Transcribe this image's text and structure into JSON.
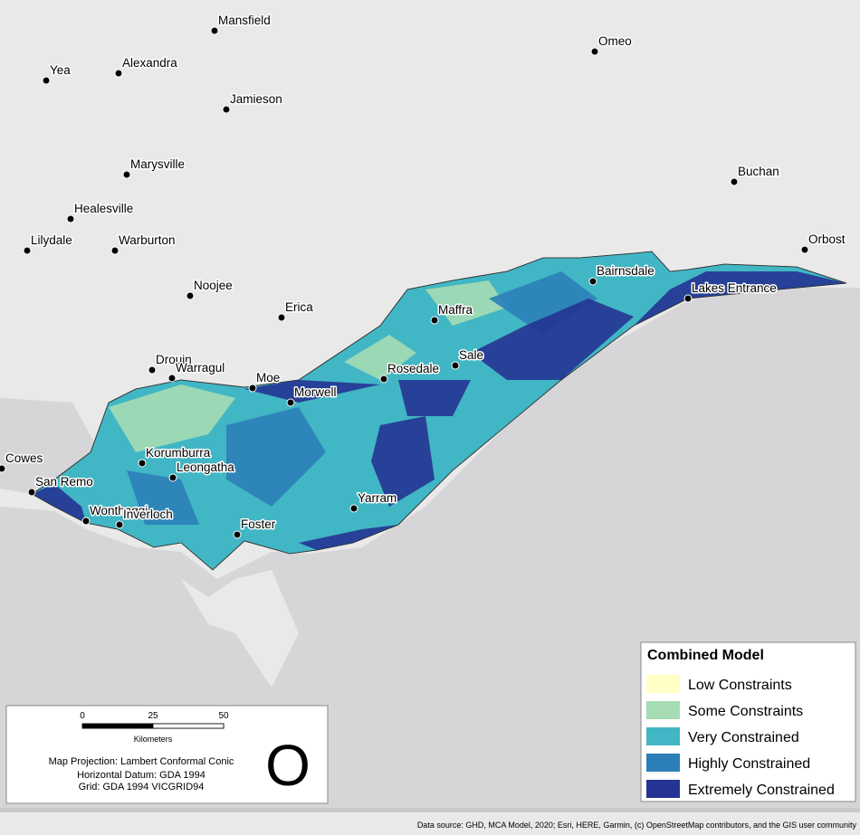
{
  "places": [
    "Mansfield",
    "Omeo",
    "Yea",
    "Alexandra",
    "Jamieson",
    "Marysville",
    "Buchan",
    "Healesville",
    "Lilydale",
    "Warburton",
    "Orbost",
    "Noojee",
    "Bairnsdale",
    "Lakes Entrance",
    "Erica",
    "Maffra",
    "Drouin",
    "Warragul",
    "Moe",
    "Sale",
    "Rosedale",
    "Morwell",
    "Cowes",
    "Korumburra",
    "Leongatha",
    "San Remo",
    "Yarram",
    "Wonthaggi",
    "Inverloch",
    "Foster"
  ],
  "legend": {
    "title": "Combined Model",
    "items": [
      {
        "name": "Low Constraints",
        "color": "#ffffc6"
      },
      {
        "name": "Some Constraints",
        "color": "#a5dcb4"
      },
      {
        "name": "Very Constrained",
        "color": "#41b6c4"
      },
      {
        "name": "Highly Constrained",
        "color": "#2c7fb8"
      },
      {
        "name": "Extremely Constrained",
        "color": "#253494"
      }
    ]
  },
  "scale": {
    "ticks": [
      0,
      25,
      50
    ],
    "unit": "Kilometers"
  },
  "notes": [
    "Map Projection: Lambert Conformal Conic",
    "Horizontal Datum:  GDA 1994",
    "Grid: GDA 1994 VICGRID94"
  ],
  "north": "O",
  "source": "Data source: GHD, MCA Model, 2020; Esri, HERE, Garmin, (c) OpenStreetMap contributors, and the GIS user community"
}
